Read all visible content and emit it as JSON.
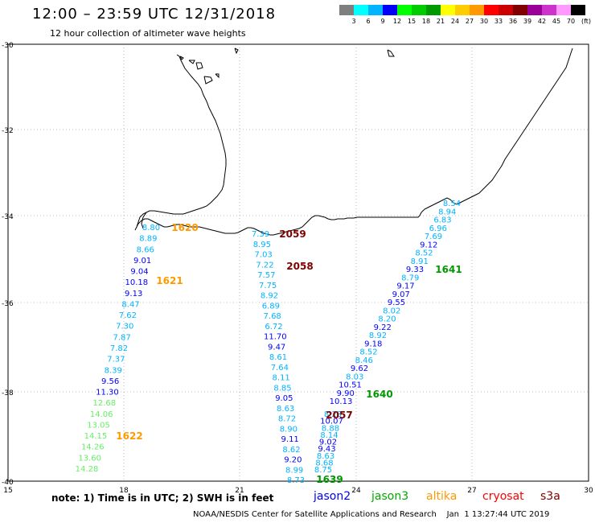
{
  "header": {
    "title": "12:00 – 23:59 UTC 12/31/2018",
    "subtitle": "12 hour collection of altimeter wave heights"
  },
  "legend": {
    "unit": "(ft)",
    "items": [
      {
        "label": "3",
        "color": "#7f7f7f"
      },
      {
        "label": "6",
        "color": "#00ffff"
      },
      {
        "label": "9",
        "color": "#00b4ff"
      },
      {
        "label": "12",
        "color": "#0000ff"
      },
      {
        "label": "15",
        "color": "#00ff00"
      },
      {
        "label": "18",
        "color": "#00cc00"
      },
      {
        "label": "21",
        "color": "#009900"
      },
      {
        "label": "24",
        "color": "#ffff00"
      },
      {
        "label": "27",
        "color": "#ffcc00"
      },
      {
        "label": "30",
        "color": "#ff9900"
      },
      {
        "label": "33",
        "color": "#ff0000"
      },
      {
        "label": "36",
        "color": "#cc0000"
      },
      {
        "label": "39",
        "color": "#800000"
      },
      {
        "label": "42",
        "color": "#990099"
      },
      {
        "label": "45",
        "color": "#cc33cc"
      },
      {
        "label": "70",
        "color": "#ff99ff"
      },
      {
        "label": "",
        "color": "#000000"
      }
    ]
  },
  "axes": {
    "lat_labels": [
      "-30",
      "-32",
      "-34",
      "-36",
      "-38",
      "-40"
    ],
    "lon_labels": [
      "15",
      "18",
      "21",
      "24",
      "27",
      "30"
    ],
    "gridlines": "dotted"
  },
  "pass_labels": [
    {
      "text": "1620",
      "color": "#ff9900"
    },
    {
      "text": "1621",
      "color": "#ff9900"
    },
    {
      "text": "1622",
      "color": "#ff9900"
    },
    {
      "text": "2059",
      "color": "#800000"
    },
    {
      "text": "2058",
      "color": "#800000"
    },
    {
      "text": "2057",
      "color": "#800000"
    },
    {
      "text": "1641",
      "color": "#009900"
    },
    {
      "text": "1640",
      "color": "#009900"
    },
    {
      "text": "1639",
      "color": "#009900"
    }
  ],
  "tracks": {
    "altika_west": [
      {
        "v": "8.80",
        "c": "#00b4ff"
      },
      {
        "v": "8.89",
        "c": "#00b4ff"
      },
      {
        "v": "8.66",
        "c": "#00b4ff"
      },
      {
        "v": "9.01",
        "c": "#0000ff"
      },
      {
        "v": "9.04",
        "c": "#0000ff"
      },
      {
        "v": "10.18",
        "c": "#0000ff"
      },
      {
        "v": "9.13",
        "c": "#0000ff"
      },
      {
        "v": "8.47",
        "c": "#00b4ff"
      },
      {
        "v": "7.62",
        "c": "#00b4ff"
      },
      {
        "v": "7.30",
        "c": "#00b4ff"
      },
      {
        "v": "7.87",
        "c": "#00b4ff"
      },
      {
        "v": "7.82",
        "c": "#00b4ff"
      },
      {
        "v": "7.37",
        "c": "#00b4ff"
      },
      {
        "v": "8.39",
        "c": "#00b4ff"
      },
      {
        "v": "9.56",
        "c": "#0000ff"
      },
      {
        "v": "11.30",
        "c": "#0000ff"
      },
      {
        "v": "12.68",
        "c": "#66ee66"
      },
      {
        "v": "14.06",
        "c": "#66ee66"
      },
      {
        "v": "13.05",
        "c": "#66ee66"
      },
      {
        "v": "14.15",
        "c": "#66ee66"
      },
      {
        "v": "14.26",
        "c": "#66ee66"
      },
      {
        "v": "13.60",
        "c": "#66ee66"
      },
      {
        "v": "14.28",
        "c": "#66ee66"
      }
    ],
    "cryosat_mid": [
      {
        "v": "7.39",
        "c": "#00b4ff"
      },
      {
        "v": "8.95",
        "c": "#00b4ff"
      },
      {
        "v": "7.03",
        "c": "#00b4ff"
      },
      {
        "v": "7.22",
        "c": "#00b4ff"
      },
      {
        "v": "7.57",
        "c": "#00b4ff"
      },
      {
        "v": "7.75",
        "c": "#00b4ff"
      },
      {
        "v": "8.92",
        "c": "#00b4ff"
      },
      {
        "v": "6.89",
        "c": "#00b4ff"
      },
      {
        "v": "7.68",
        "c": "#00b4ff"
      },
      {
        "v": "6.72",
        "c": "#00b4ff"
      },
      {
        "v": "11.70",
        "c": "#0000ff"
      },
      {
        "v": "9.47",
        "c": "#0000ff"
      },
      {
        "v": "8.61",
        "c": "#00b4ff"
      },
      {
        "v": "7.64",
        "c": "#00b4ff"
      },
      {
        "v": "8.11",
        "c": "#00b4ff"
      },
      {
        "v": "8.85",
        "c": "#00b4ff"
      },
      {
        "v": "9.05",
        "c": "#0000ff"
      },
      {
        "v": "8.63",
        "c": "#00b4ff"
      },
      {
        "v": "8.72",
        "c": "#00b4ff"
      },
      {
        "v": "8.90",
        "c": "#00b4ff"
      },
      {
        "v": "9.11",
        "c": "#0000ff"
      },
      {
        "v": "8.62",
        "c": "#00b4ff"
      },
      {
        "v": "9.20",
        "c": "#0000ff"
      },
      {
        "v": "8.99",
        "c": "#00b4ff"
      },
      {
        "v": "8.73",
        "c": "#00b4ff"
      }
    ],
    "cryosat_mid2": [
      {
        "v": "8.23",
        "c": "#00b4ff"
      },
      {
        "v": "10.07",
        "c": "#0000ff"
      },
      {
        "v": "8.88",
        "c": "#00b4ff"
      },
      {
        "v": "8.14",
        "c": "#00b4ff"
      },
      {
        "v": "9.02",
        "c": "#0000ff"
      },
      {
        "v": "9.43",
        "c": "#0000ff"
      },
      {
        "v": "8.63",
        "c": "#00b4ff"
      },
      {
        "v": "8.68",
        "c": "#00b4ff"
      },
      {
        "v": "8.75",
        "c": "#00b4ff"
      }
    ],
    "jason3_east": [
      {
        "v": "8.54",
        "c": "#00b4ff"
      },
      {
        "v": "8.94",
        "c": "#00b4ff"
      },
      {
        "v": "6.83",
        "c": "#00b4ff"
      },
      {
        "v": "6.96",
        "c": "#00b4ff"
      },
      {
        "v": "7.69",
        "c": "#00b4ff"
      },
      {
        "v": "9.12",
        "c": "#0000ff"
      },
      {
        "v": "8.52",
        "c": "#00b4ff"
      },
      {
        "v": "8.91",
        "c": "#00b4ff"
      },
      {
        "v": "9.33",
        "c": "#0000ff"
      },
      {
        "v": "8.79",
        "c": "#00b4ff"
      },
      {
        "v": "9.17",
        "c": "#0000ff"
      },
      {
        "v": "9.07",
        "c": "#0000ff"
      },
      {
        "v": "9.55",
        "c": "#0000ff"
      },
      {
        "v": "8.02",
        "c": "#00b4ff"
      },
      {
        "v": "8.20",
        "c": "#00b4ff"
      },
      {
        "v": "9.22",
        "c": "#0000ff"
      },
      {
        "v": "8.92",
        "c": "#00b4ff"
      },
      {
        "v": "9.18",
        "c": "#0000ff"
      },
      {
        "v": "8.52",
        "c": "#00b4ff"
      },
      {
        "v": "8.46",
        "c": "#00b4ff"
      },
      {
        "v": "9.62",
        "c": "#0000ff"
      },
      {
        "v": "8.03",
        "c": "#00b4ff"
      },
      {
        "v": "10.51",
        "c": "#0000ff"
      },
      {
        "v": "9.90",
        "c": "#0000ff"
      },
      {
        "v": "10.13",
        "c": "#0000ff"
      }
    ]
  },
  "satellites": [
    {
      "name": "jason2",
      "color": "#0000ff"
    },
    {
      "name": "jason3",
      "color": "#00aa00"
    },
    {
      "name": "altika",
      "color": "#ff9900"
    },
    {
      "name": "cryosat",
      "color": "#ff0000"
    },
    {
      "name": "s3a",
      "color": "#800000"
    }
  ],
  "note": "note:  1) Time is in UTC;  2) SWH is in feet",
  "footer": "NOAA/NESDIS Center for Satellite Applications and Research    Jan  1 13:27:44 UTC 2019"
}
